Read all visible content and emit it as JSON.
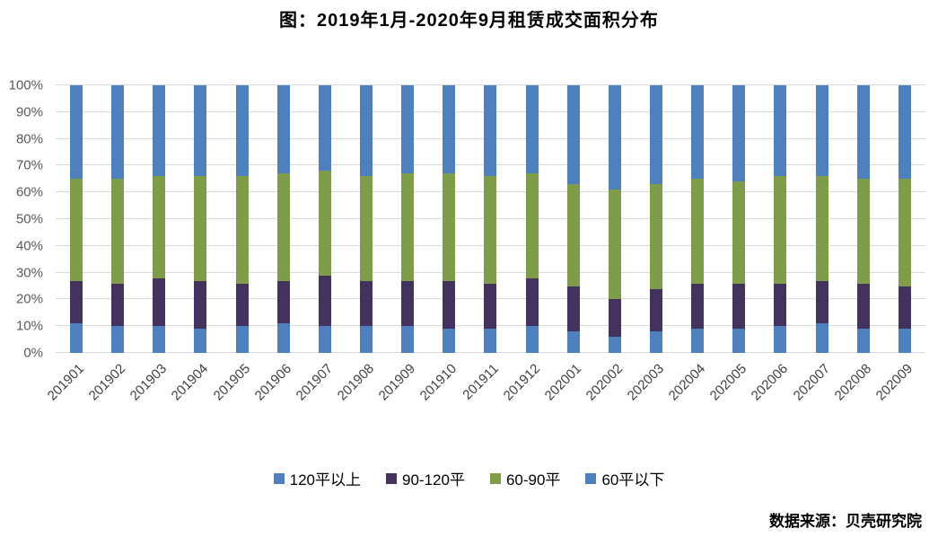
{
  "title": "图：2019年1月-2020年9月租赁成交面积分布",
  "source": "数据来源：贝壳研究院",
  "chart_data": {
    "type": "bar",
    "stacked": true,
    "percent_stacked": true,
    "title": "图：2019年1月-2020年9月租赁成交面积分布",
    "categories": [
      "201901",
      "201902",
      "201903",
      "201904",
      "201905",
      "201906",
      "201907",
      "201908",
      "201909",
      "201910",
      "201911",
      "201912",
      "202001",
      "202002",
      "202003",
      "202004",
      "202005",
      "202006",
      "202007",
      "202008",
      "202009"
    ],
    "series": [
      {
        "name": "120平以上",
        "color": "#4e80bd",
        "values": [
          11,
          10,
          10,
          9,
          10,
          11,
          10,
          10,
          10,
          9,
          9,
          10,
          8,
          6,
          8,
          9,
          9,
          10,
          11,
          9,
          9
        ]
      },
      {
        "name": "90-120平",
        "color": "#43335c",
        "values": [
          16,
          16,
          18,
          18,
          16,
          16,
          19,
          17,
          17,
          18,
          17,
          18,
          17,
          14,
          16,
          17,
          17,
          16,
          16,
          17,
          16
        ]
      },
      {
        "name": "60-90平",
        "color": "#7e9c49",
        "values": [
          38,
          39,
          38,
          39,
          40,
          40,
          39,
          39,
          40,
          40,
          40,
          39,
          38,
          41,
          39,
          39,
          38,
          40,
          39,
          39,
          40
        ]
      },
      {
        "name": "60平以下",
        "color": "#4e80bd",
        "values": [
          35,
          35,
          34,
          34,
          34,
          33,
          32,
          34,
          33,
          33,
          34,
          33,
          37,
          39,
          37,
          35,
          36,
          34,
          34,
          35,
          35
        ]
      }
    ],
    "xlabel": "",
    "ylabel": "",
    "ylim": [
      0,
      100
    ],
    "yticks": [
      0,
      10,
      20,
      30,
      40,
      50,
      60,
      70,
      80,
      90,
      100
    ],
    "ytick_format": "percent",
    "grid": true,
    "legend_position": "bottom"
  }
}
